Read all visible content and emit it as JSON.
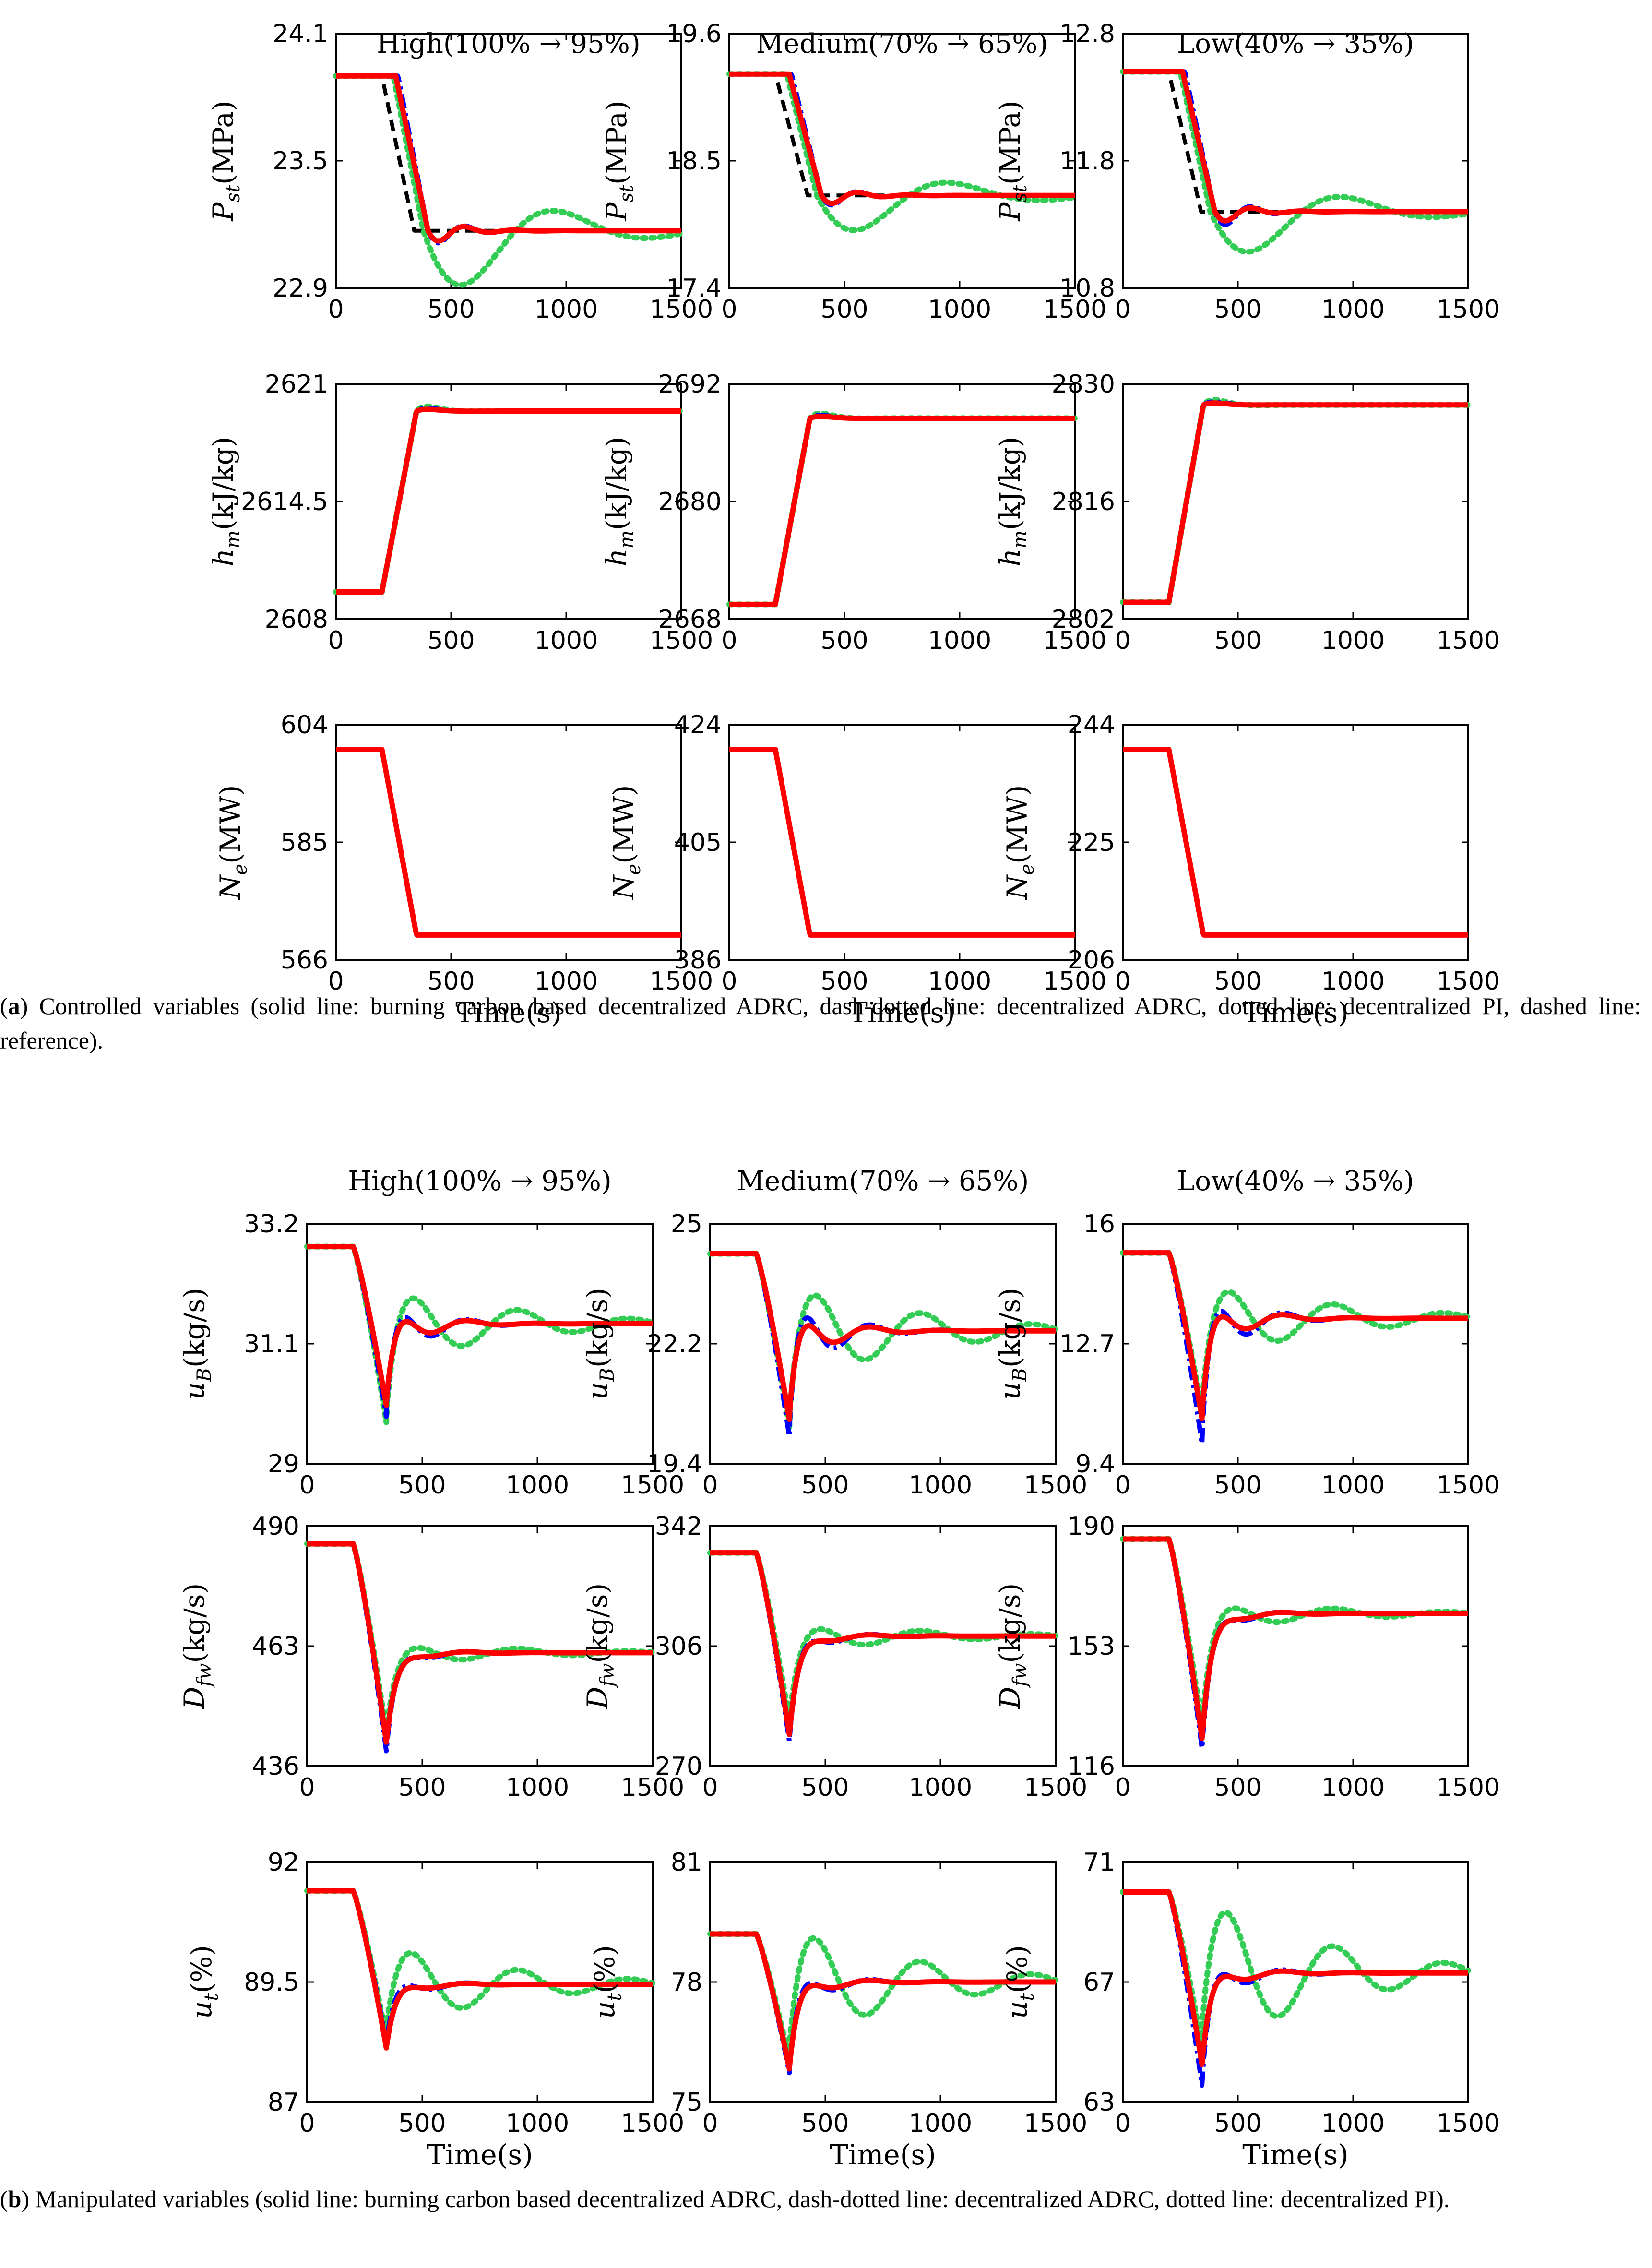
{
  "panel_a": {
    "caption_letter": "a",
    "caption_text": "Controlled variables (solid line: burning carbon based decentralized ADRC, dash-dotted line: decentralized ADRC, dotted line: decentralized PI, dashed line: reference).",
    "columns": [
      "High(100% → 95%)",
      "Medium(70% → 65%)",
      "Low(40% → 35%)"
    ]
  },
  "panel_b": {
    "caption_letter": "b",
    "caption_text": "Manipulated variables (solid line: burning carbon based decentralized ADRC, dash-dotted line: decentralized ADRC, dotted line: decentralized PI).",
    "columns": [
      "High(100% → 95%)",
      "Medium(70% → 65%)",
      "Low(40% → 35%)"
    ]
  },
  "colors": {
    "burning_carbon_adrc": "#ff0000",
    "adrc": "#0000ff",
    "pi": "#33cc55",
    "reference": "#000000"
  },
  "chart_data": [
    {
      "panel": "a",
      "type": "line",
      "ylabel": "P_st(MPa)",
      "column": "High(100% → 95%)",
      "xlabel": "",
      "xlim": [
        0,
        1500
      ],
      "xticks": [
        "0",
        "500",
        "1000",
        "1500"
      ],
      "ylim": [
        22.9,
        24.1
      ],
      "yticks": [
        "22.9",
        "23.5",
        "24.1"
      ],
      "pre": 23.9,
      "post": 23.17,
      "shape": "pressure",
      "series": [
        {
          "style": "reference"
        },
        {
          "style": "pi",
          "amp": 0.55
        },
        {
          "style": "adrc",
          "amp": 0.12
        },
        {
          "style": "burning_carbon_adrc",
          "amp": 0.1
        }
      ]
    },
    {
      "panel": "a",
      "type": "line",
      "ylabel": "P_st(MPa)",
      "column": "Medium(70% → 65%)",
      "xlabel": "",
      "xlim": [
        0,
        1500
      ],
      "xticks": [
        "0",
        "500",
        "1000",
        "1500"
      ],
      "ylim": [
        17.4,
        19.6
      ],
      "yticks": [
        "17.4",
        "18.5",
        "19.6"
      ],
      "pre": 19.25,
      "post": 18.2,
      "shape": "pressure",
      "series": [
        {
          "style": "reference"
        },
        {
          "style": "pi",
          "amp": 0.45
        },
        {
          "style": "adrc",
          "amp": 0.12
        },
        {
          "style": "burning_carbon_adrc",
          "amp": 0.1
        }
      ]
    },
    {
      "panel": "a",
      "type": "line",
      "ylabel": "P_st(MPa)",
      "column": "Low(40% → 35%)",
      "xlabel": "",
      "xlim": [
        0,
        1500
      ],
      "xticks": [
        "0",
        "500",
        "1000",
        "1500"
      ],
      "ylim": [
        10.8,
        12.8
      ],
      "yticks": [
        "10.8",
        "11.8",
        "12.8"
      ],
      "pre": 12.5,
      "post": 11.4,
      "shape": "pressure",
      "series": [
        {
          "style": "reference"
        },
        {
          "style": "pi",
          "amp": 0.45
        },
        {
          "style": "adrc",
          "amp": 0.14
        },
        {
          "style": "burning_carbon_adrc",
          "amp": 0.1
        }
      ]
    },
    {
      "panel": "a",
      "type": "line",
      "ylabel": "h_m(kJ/kg)",
      "column": "High(100% → 95%)",
      "xlabel": "",
      "xlim": [
        0,
        1500
      ],
      "xticks": [
        "0",
        "500",
        "1000",
        "1500"
      ],
      "ylim": [
        2608,
        2621
      ],
      "yticks": [
        "2608",
        "2614.5",
        "2621"
      ],
      "pre": 2609.5,
      "post": 2619.5,
      "shape": "ramp",
      "series": [
        {
          "style": "pi",
          "amp": 0.08
        },
        {
          "style": "adrc",
          "amp": 0.05
        },
        {
          "style": "burning_carbon_adrc",
          "amp": 0.03
        }
      ]
    },
    {
      "panel": "a",
      "type": "line",
      "ylabel": "h_m(kJ/kg)",
      "column": "Medium(70% → 65%)",
      "xlabel": "",
      "xlim": [
        0,
        1500
      ],
      "xticks": [
        "0",
        "500",
        "1000",
        "1500"
      ],
      "ylim": [
        2668,
        2692
      ],
      "yticks": [
        "2668",
        "2680",
        "2692"
      ],
      "pre": 2669.5,
      "post": 2688.5,
      "shape": "ramp",
      "series": [
        {
          "style": "pi",
          "amp": 0.08
        },
        {
          "style": "adrc",
          "amp": 0.05
        },
        {
          "style": "burning_carbon_adrc",
          "amp": 0.03
        }
      ]
    },
    {
      "panel": "a",
      "type": "line",
      "ylabel": "h_m(kJ/kg)",
      "column": "Low(40% → 35%)",
      "xlabel": "",
      "xlim": [
        0,
        1500
      ],
      "xticks": [
        "0",
        "500",
        "1000",
        "1500"
      ],
      "ylim": [
        2802,
        2830
      ],
      "yticks": [
        "2802",
        "2816",
        "2830"
      ],
      "pre": 2804,
      "post": 2827.5,
      "shape": "ramp",
      "series": [
        {
          "style": "pi",
          "amp": 0.08
        },
        {
          "style": "adrc",
          "amp": 0.05
        },
        {
          "style": "burning_carbon_adrc",
          "amp": 0.03
        }
      ]
    },
    {
      "panel": "a",
      "type": "line",
      "ylabel": "N_e(MW)",
      "column": "High(100% → 95%)",
      "xlabel": "Time(s)",
      "xlim": [
        0,
        1500
      ],
      "xticks": [
        "0",
        "500",
        "1000",
        "1500"
      ],
      "ylim": [
        566,
        604
      ],
      "yticks": [
        "566",
        "585",
        "604"
      ],
      "pre": 600,
      "post": 570,
      "shape": "ramp",
      "series": [
        {
          "style": "burning_carbon_adrc",
          "amp": 0
        }
      ]
    },
    {
      "panel": "a",
      "type": "line",
      "ylabel": "N_e(MW)",
      "column": "Medium(70% → 65%)",
      "xlabel": "Time(s)",
      "xlim": [
        0,
        1500
      ],
      "xticks": [
        "0",
        "500",
        "1000",
        "1500"
      ],
      "ylim": [
        386,
        424
      ],
      "yticks": [
        "386",
        "405",
        "424"
      ],
      "pre": 420,
      "post": 390,
      "shape": "ramp",
      "series": [
        {
          "style": "burning_carbon_adrc",
          "amp": 0
        }
      ]
    },
    {
      "panel": "a",
      "type": "line",
      "ylabel": "N_e(MW)",
      "column": "Low(40% → 35%)",
      "xlabel": "Time(s)",
      "xlim": [
        0,
        1500
      ],
      "xticks": [
        "0",
        "500",
        "1000",
        "1500"
      ],
      "ylim": [
        206,
        244
      ],
      "yticks": [
        "206",
        "225",
        "244"
      ],
      "pre": 240,
      "post": 210,
      "shape": "ramp",
      "series": [
        {
          "style": "burning_carbon_adrc",
          "amp": 0
        }
      ]
    },
    {
      "panel": "b",
      "type": "line",
      "ylabel": "u_B(kg/s)",
      "column": "High(100% → 95%)",
      "xlabel": "",
      "xlim": [
        0,
        1500
      ],
      "xticks": [
        "0",
        "500",
        "1000",
        "1500"
      ],
      "ylim": [
        29,
        33.2
      ],
      "yticks": [
        "29",
        "31.1",
        "33.2"
      ],
      "pre": 32.8,
      "post": 31.45,
      "dip": 29.8,
      "shape": "dip",
      "series": [
        {
          "style": "pi",
          "dip": 29.7,
          "amp": 0.75
        },
        {
          "style": "adrc",
          "dip": 29.8,
          "amp": 0.7
        },
        {
          "style": "burning_carbon_adrc",
          "dip": 30.0,
          "amp": 0.5
        }
      ]
    },
    {
      "panel": "b",
      "type": "line",
      "ylabel": "u_B(kg/s)",
      "column": "Medium(70% → 65%)",
      "xlabel": "",
      "xlim": [
        0,
        1500
      ],
      "xticks": [
        "0",
        "500",
        "1000",
        "1500"
      ],
      "ylim": [
        19.4,
        25
      ],
      "yticks": [
        "19.4",
        "22.2",
        "25"
      ],
      "pre": 24.3,
      "post": 22.5,
      "dip": 20.1,
      "shape": "dip",
      "series": [
        {
          "style": "pi",
          "dip": 20.2,
          "amp": 1.3
        },
        {
          "style": "adrc",
          "dip": 20.0,
          "amp": 1.3
        },
        {
          "style": "burning_carbon_adrc",
          "dip": 20.4,
          "amp": 0.85
        }
      ]
    },
    {
      "panel": "b",
      "type": "line",
      "ylabel": "u_B(kg/s)",
      "column": "Low(40% → 35%)",
      "xlabel": "",
      "xlim": [
        0,
        1500
      ],
      "xticks": [
        "0",
        "500",
        "1000",
        "1500"
      ],
      "ylim": [
        9.4,
        16
      ],
      "yticks": [
        "9.4",
        "12.7",
        "16"
      ],
      "pre": 15.2,
      "post": 13.4,
      "dip": 10.2,
      "shape": "dip",
      "series": [
        {
          "style": "pi",
          "dip": 10.8,
          "amp": 1.2
        },
        {
          "style": "adrc",
          "dip": 9.9,
          "amp": 1.4
        },
        {
          "style": "burning_carbon_adrc",
          "dip": 10.6,
          "amp": 0.9
        }
      ]
    },
    {
      "panel": "b",
      "type": "line",
      "ylabel": "D_fw(kg/s)",
      "column": "High(100% → 95%)",
      "xlabel": "",
      "xlim": [
        0,
        1500
      ],
      "xticks": [
        "0",
        "500",
        "1000",
        "1500"
      ],
      "ylim": [
        436,
        490
      ],
      "yticks": [
        "436",
        "463",
        "490"
      ],
      "pre": 486,
      "post": 461.5,
      "dip": 440,
      "shape": "dip",
      "series": [
        {
          "style": "pi",
          "dip": 443,
          "amp": 3
        },
        {
          "style": "adrc",
          "dip": 439,
          "amp": 3
        },
        {
          "style": "burning_carbon_adrc",
          "dip": 441,
          "amp": 2
        }
      ]
    },
    {
      "panel": "b",
      "type": "line",
      "ylabel": "D_fw(kg/s)",
      "column": "Medium(70% → 65%)",
      "xlabel": "",
      "xlim": [
        0,
        1500
      ],
      "xticks": [
        "0",
        "500",
        "1000",
        "1500"
      ],
      "ylim": [
        270,
        342
      ],
      "yticks": [
        "270",
        "306",
        "342"
      ],
      "pre": 334,
      "post": 309,
      "dip": 278,
      "shape": "dip",
      "series": [
        {
          "style": "pi",
          "dip": 283,
          "amp": 5
        },
        {
          "style": "adrc",
          "dip": 277,
          "amp": 5
        },
        {
          "style": "burning_carbon_adrc",
          "dip": 279,
          "amp": 3.5
        }
      ]
    },
    {
      "panel": "b",
      "type": "line",
      "ylabel": "D_fw(kg/s)",
      "column": "Low(40% → 35%)",
      "xlabel": "",
      "xlim": [
        0,
        1500
      ],
      "xticks": [
        "0",
        "500",
        "1000",
        "1500"
      ],
      "ylim": [
        116,
        190
      ],
      "yticks": [
        "116",
        "153",
        "190"
      ],
      "pre": 186,
      "post": 163,
      "dip": 122,
      "shape": "dip",
      "series": [
        {
          "style": "pi",
          "dip": 128,
          "amp": 5
        },
        {
          "style": "adrc",
          "dip": 121,
          "amp": 5
        },
        {
          "style": "burning_carbon_adrc",
          "dip": 124,
          "amp": 3.5
        }
      ]
    },
    {
      "panel": "b",
      "type": "line",
      "ylabel": "u_t(%)",
      "column": "High(100% → 95%)",
      "xlabel": "Time(s)",
      "xlim": [
        0,
        1500
      ],
      "xticks": [
        "0",
        "500",
        "1000",
        "1500"
      ],
      "ylim": [
        87,
        92
      ],
      "yticks": [
        "87",
        "89.5",
        "92"
      ],
      "pre": 91.4,
      "post": 89.45,
      "dip": 88.1,
      "shape": "dip",
      "series": [
        {
          "style": "pi",
          "dip": 88.3,
          "amp": 0.95
        },
        {
          "style": "adrc",
          "dip": 88.2,
          "amp": 0.3
        },
        {
          "style": "burning_carbon_adrc",
          "dip": 88.1,
          "amp": 0.2
        }
      ]
    },
    {
      "panel": "b",
      "type": "line",
      "ylabel": "u_t(%)",
      "column": "Medium(70% → 65%)",
      "xlabel": "Time(s)",
      "xlim": [
        0,
        1500
      ],
      "xticks": [
        "0",
        "500",
        "1000",
        "1500"
      ],
      "ylim": [
        75,
        81
      ],
      "yticks": [
        "75",
        "78",
        "81"
      ],
      "pre": 79.2,
      "post": 78.0,
      "dip": 75.7,
      "shape": "dip",
      "series": [
        {
          "style": "pi",
          "dip": 76.0,
          "amp": 1.6
        },
        {
          "style": "adrc",
          "dip": 75.7,
          "amp": 0.6
        },
        {
          "style": "burning_carbon_adrc",
          "dip": 75.8,
          "amp": 0.4
        }
      ]
    },
    {
      "panel": "b",
      "type": "line",
      "ylabel": "u_t(%)",
      "column": "Low(40% → 35%)",
      "xlabel": "Time(s)",
      "xlim": [
        0,
        1500
      ],
      "xticks": [
        "0",
        "500",
        "1000",
        "1500"
      ],
      "ylim": [
        63,
        71
      ],
      "yticks": [
        "63",
        "67",
        "71"
      ],
      "pre": 70.0,
      "post": 67.3,
      "dip": 64.0,
      "shape": "dip",
      "series": [
        {
          "style": "pi",
          "dip": 64.8,
          "amp": 2.8
        },
        {
          "style": "adrc",
          "dip": 63.5,
          "amp": 1.0
        },
        {
          "style": "burning_carbon_adrc",
          "dip": 64.2,
          "amp": 0.6
        }
      ]
    }
  ]
}
